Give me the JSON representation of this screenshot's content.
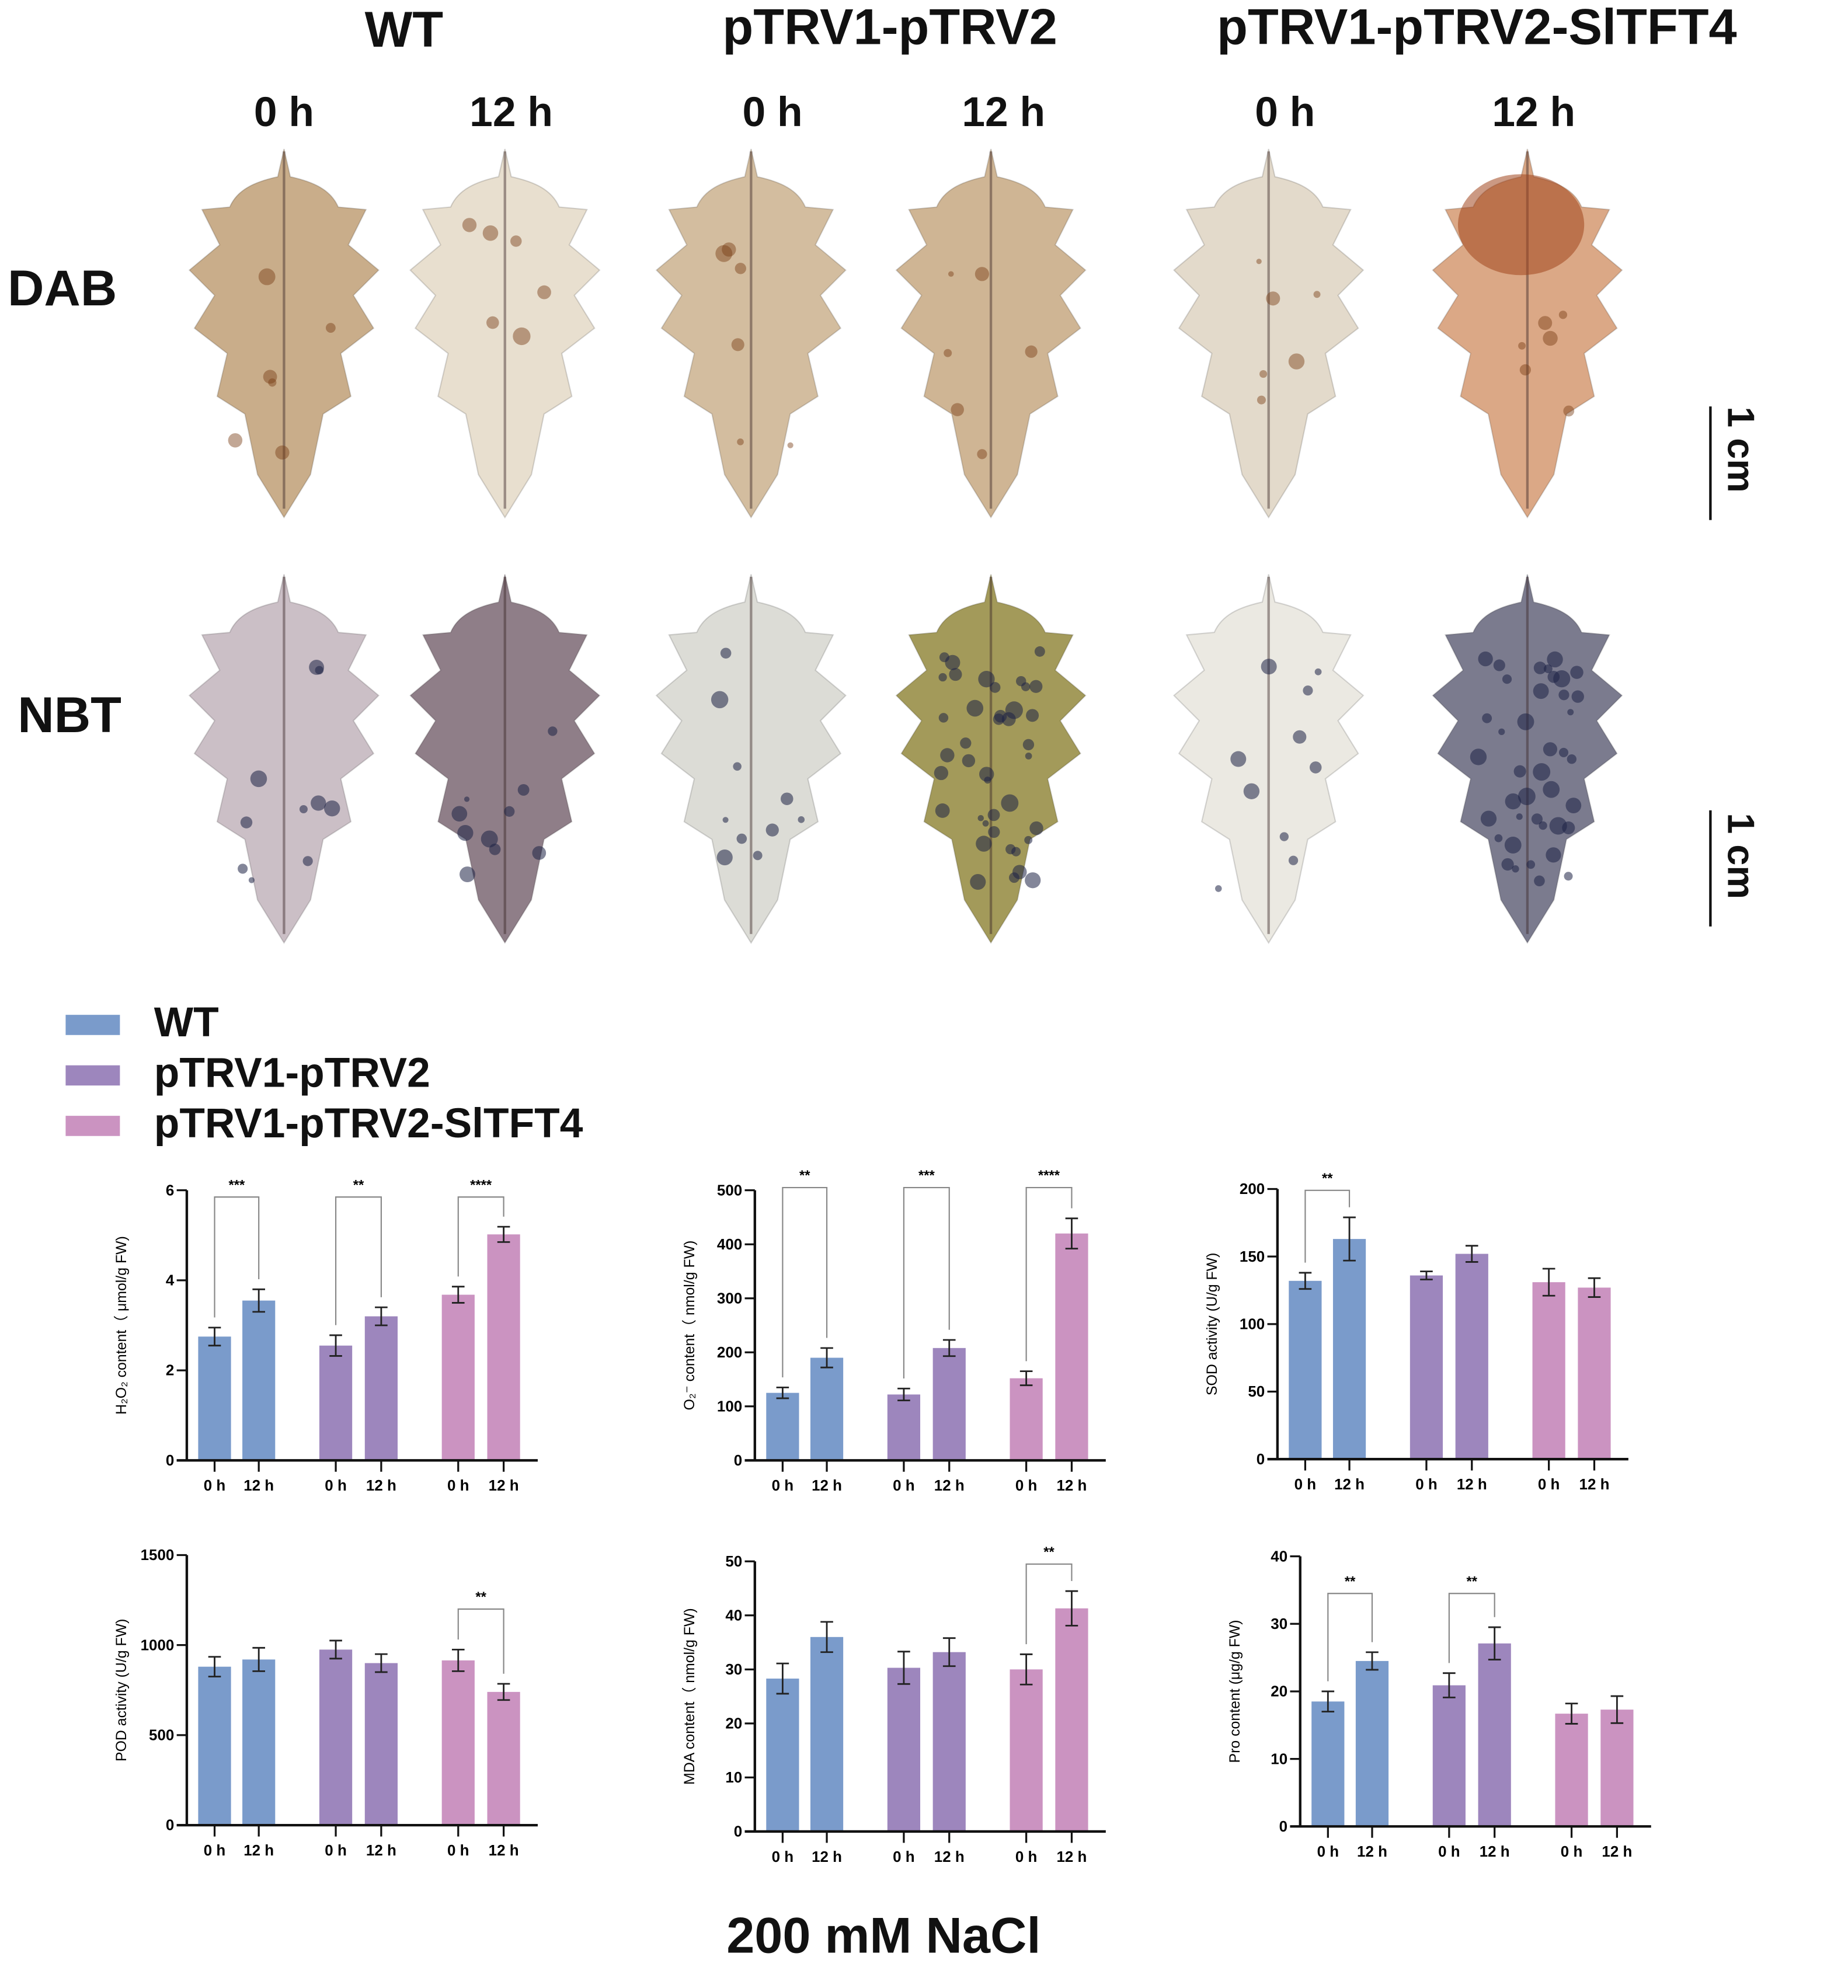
{
  "columns": {
    "groups": [
      "WT",
      "pTRV1-pTRV2",
      "pTRV1-pTRV2-SlTFT4"
    ],
    "times": [
      "0 h",
      "12 h",
      "0 h",
      "12 h",
      "0 h",
      "12 h"
    ]
  },
  "rows": {
    "dab": "DAB",
    "nbt": "NBT"
  },
  "scale_bar": "1 cm",
  "leaf_colors": {
    "dab": [
      "#c9ad8a",
      "#e8dfcf",
      "#d3bd9f",
      "#cfb594",
      "#e3dacb",
      "#dba886"
    ],
    "nbt": [
      "#cbbfc6",
      "#8f7e88",
      "#dcdcd6",
      "#a39a5a",
      "#ebe9e2",
      "#7b7b8e"
    ]
  },
  "legend": [
    {
      "label": "WT",
      "color": "#7a9bcb"
    },
    {
      "label": "pTRV1-pTRV2",
      "color": "#9d86bd"
    },
    {
      "label": "pTRV1-pTRV2-SlTFT4",
      "color": "#cb93c1"
    }
  ],
  "footer": "200 mM NaCl",
  "chart_data": [
    {
      "type": "bar",
      "ylabel": "H₂O₂ content（ μmol/g FW)",
      "ylim": [
        0,
        6
      ],
      "yticks": [
        0,
        2,
        4,
        6
      ],
      "categories": [
        "0 h",
        "12 h",
        "0 h",
        "12 h",
        "0 h",
        "12 h"
      ],
      "bar_groups": [
        "WT",
        "WT",
        "pTRV1-pTRV2",
        "pTRV1-pTRV2",
        "pTRV1-pTRV2-SlTFT4",
        "pTRV1-pTRV2-SlTFT4"
      ],
      "values": [
        2.75,
        3.55,
        2.55,
        3.2,
        3.68,
        5.02
      ],
      "errors": [
        0.2,
        0.25,
        0.23,
        0.2,
        0.18,
        0.17
      ],
      "significance": [
        {
          "bars": [
            0,
            1
          ],
          "label": "***",
          "y": 5.85
        },
        {
          "bars": [
            2,
            3
          ],
          "label": "**",
          "y": 5.85
        },
        {
          "bars": [
            4,
            5
          ],
          "label": "****",
          "y": 5.85
        }
      ]
    },
    {
      "type": "bar",
      "ylabel": "O₂⁻ content（ nmol/g FW)",
      "ylim": [
        0,
        500
      ],
      "yticks": [
        0,
        100,
        200,
        300,
        400,
        500
      ],
      "categories": [
        "0 h",
        "12 h",
        "0 h",
        "12 h",
        "0 h",
        "12 h"
      ],
      "bar_groups": [
        "WT",
        "WT",
        "pTRV1-pTRV2",
        "pTRV1-pTRV2",
        "pTRV1-pTRV2-SlTFT4",
        "pTRV1-pTRV2-SlTFT4"
      ],
      "values": [
        125,
        190,
        122,
        208,
        152,
        420
      ],
      "errors": [
        10,
        18,
        11,
        15,
        13,
        28
      ],
      "significance": [
        {
          "bars": [
            0,
            1
          ],
          "label": "**",
          "y": 505
        },
        {
          "bars": [
            2,
            3
          ],
          "label": "***",
          "y": 505
        },
        {
          "bars": [
            4,
            5
          ],
          "label": "****",
          "y": 505
        }
      ]
    },
    {
      "type": "bar",
      "ylabel": "SOD activity (U/g FW)",
      "ylim": [
        0,
        200
      ],
      "yticks": [
        0,
        50,
        100,
        150,
        200
      ],
      "categories": [
        "0 h",
        "12 h",
        "0 h",
        "12 h",
        "0 h",
        "12 h"
      ],
      "bar_groups": [
        "WT",
        "WT",
        "pTRV1-pTRV2",
        "pTRV1-pTRV2",
        "pTRV1-pTRV2-SlTFT4",
        "pTRV1-pTRV2-SlTFT4"
      ],
      "values": [
        132,
        163,
        136,
        152,
        131,
        127
      ],
      "errors": [
        6,
        16,
        3,
        6,
        10,
        7
      ],
      "significance": [
        {
          "bars": [
            0,
            1
          ],
          "label": "**",
          "y": 199
        }
      ]
    },
    {
      "type": "bar",
      "ylabel": "POD activity (U/g FW)",
      "ylim": [
        0,
        1500
      ],
      "yticks": [
        0,
        500,
        1000,
        1500
      ],
      "categories": [
        "0 h",
        "12 h",
        "0 h",
        "12 h",
        "0 h",
        "12 h"
      ],
      "bar_groups": [
        "WT",
        "WT",
        "pTRV1-pTRV2",
        "pTRV1-pTRV2",
        "pTRV1-pTRV2-SlTFT4",
        "pTRV1-pTRV2-SlTFT4"
      ],
      "values": [
        880,
        920,
        975,
        900,
        915,
        740
      ],
      "errors": [
        55,
        65,
        50,
        50,
        60,
        45
      ],
      "significance": [
        {
          "bars": [
            4,
            5
          ],
          "label": "**",
          "y": 1200
        }
      ]
    },
    {
      "type": "bar",
      "ylabel": "MDA content（ nmol/g FW)",
      "ylim": [
        0,
        50
      ],
      "yticks": [
        0,
        10,
        20,
        30,
        40,
        50
      ],
      "categories": [
        "0 h",
        "12 h",
        "0 h",
        "12 h",
        "0 h",
        "12 h"
      ],
      "bar_groups": [
        "WT",
        "WT",
        "pTRV1-pTRV2",
        "pTRV1-pTRV2",
        "pTRV1-pTRV2-SlTFT4",
        "pTRV1-pTRV2-SlTFT4"
      ],
      "values": [
        28.3,
        36,
        30.3,
        33.2,
        30,
        41.3
      ],
      "errors": [
        2.8,
        2.8,
        3,
        2.6,
        2.8,
        3.2
      ],
      "significance": [
        {
          "bars": [
            4,
            5
          ],
          "label": "**",
          "y": 49.5
        }
      ]
    },
    {
      "type": "bar",
      "ylabel": "Pro content (μg/g FW)",
      "ylim": [
        0,
        40
      ],
      "yticks": [
        0,
        10,
        20,
        30,
        40
      ],
      "categories": [
        "0 h",
        "12 h",
        "0 h",
        "12 h",
        "0 h",
        "12 h"
      ],
      "bar_groups": [
        "WT",
        "WT",
        "pTRV1-pTRV2",
        "pTRV1-pTRV2",
        "pTRV1-pTRV2-SlTFT4",
        "pTRV1-pTRV2-SlTFT4"
      ],
      "values": [
        18.5,
        24.5,
        20.9,
        27.1,
        16.7,
        17.3
      ],
      "errors": [
        1.5,
        1.3,
        1.8,
        2.4,
        1.5,
        2
      ],
      "significance": [
        {
          "bars": [
            0,
            1
          ],
          "label": "**",
          "y": 34.5
        },
        {
          "bars": [
            2,
            3
          ],
          "label": "**",
          "y": 34.5
        }
      ]
    }
  ]
}
